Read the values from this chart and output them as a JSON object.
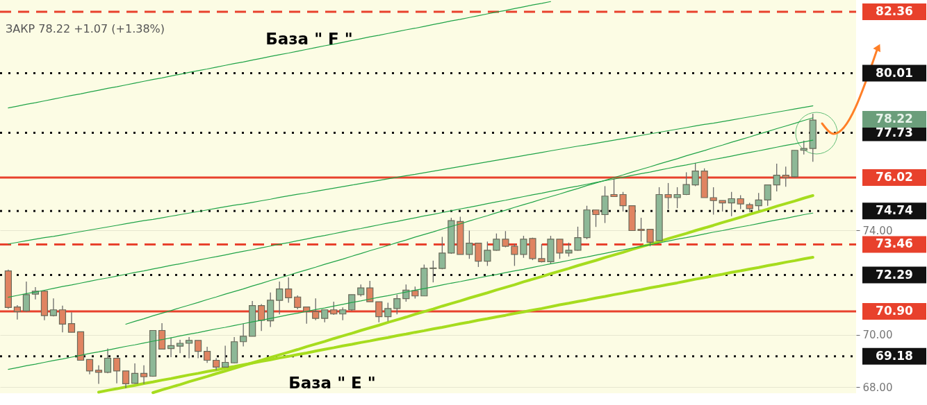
{
  "chart_data": {
    "type": "candlestick",
    "tick_labels": "y",
    "grid": "y",
    "ylim": [
      67.77,
      82.81
    ],
    "yticks": [
      {
        "value": 68,
        "label": "68.00"
      },
      {
        "value": 70,
        "label": "70.00"
      },
      {
        "value": 74,
        "label": "74.00"
      }
    ],
    "categories": [
      null,
      null,
      null,
      null,
      null,
      null,
      null,
      null,
      null,
      null,
      null,
      null,
      null,
      null,
      null,
      null,
      null,
      null,
      null,
      null,
      null,
      null,
      null,
      null,
      null,
      null,
      null,
      null,
      null,
      null,
      null,
      null,
      null,
      null,
      null,
      null,
      null,
      null,
      null,
      null,
      null,
      null,
      null,
      null,
      null,
      null,
      null,
      null,
      null,
      null,
      null,
      null,
      null,
      null,
      null,
      null,
      null,
      null,
      null,
      null,
      null,
      null,
      null,
      null,
      null,
      null,
      null,
      null,
      null,
      null,
      null,
      null,
      null,
      null,
      null,
      null,
      null,
      null,
      null,
      null,
      null,
      null,
      null,
      null,
      null,
      null,
      null,
      null,
      null,
      null
    ],
    "ohlc": [
      [
        72.45,
        72.5,
        71.0,
        71.05
      ],
      [
        71.07,
        71.14,
        70.59,
        70.89
      ],
      [
        70.92,
        72.04,
        70.88,
        71.54
      ],
      [
        71.56,
        71.83,
        71.36,
        71.67
      ],
      [
        71.67,
        71.71,
        70.56,
        70.74
      ],
      [
        70.74,
        71.4,
        70.71,
        70.96
      ],
      [
        70.96,
        71.12,
        70.1,
        70.41
      ],
      [
        70.43,
        70.87,
        70.1,
        70.1
      ],
      [
        70.12,
        70.12,
        69.02,
        69.03
      ],
      [
        69.06,
        69.06,
        68.49,
        68.62
      ],
      [
        68.65,
        68.84,
        68.13,
        68.57
      ],
      [
        68.57,
        69.48,
        68.53,
        69.11
      ],
      [
        69.11,
        69.12,
        68.15,
        68.62
      ],
      [
        68.62,
        68.62,
        67.96,
        68.13
      ],
      [
        68.15,
        68.91,
        68.13,
        68.53
      ],
      [
        68.53,
        68.84,
        68.13,
        68.4
      ],
      [
        68.42,
        70.18,
        68.4,
        70.17
      ],
      [
        70.17,
        70.45,
        69.46,
        69.46
      ],
      [
        69.48,
        69.9,
        69.15,
        69.59
      ],
      [
        69.57,
        69.81,
        69.3,
        69.68
      ],
      [
        69.68,
        69.92,
        69.11,
        69.79
      ],
      [
        69.79,
        69.79,
        69.11,
        69.37
      ],
      [
        69.37,
        69.55,
        68.93,
        69.03
      ],
      [
        69.03,
        69.11,
        68.66,
        68.77
      ],
      [
        68.77,
        69.59,
        68.75,
        68.95
      ],
      [
        68.93,
        69.92,
        68.91,
        69.74
      ],
      [
        69.74,
        70.43,
        69.56,
        69.95
      ],
      [
        69.95,
        71.3,
        69.95,
        71.12
      ],
      [
        71.12,
        71.18,
        70.15,
        70.56
      ],
      [
        70.54,
        71.62,
        70.3,
        71.33
      ],
      [
        71.32,
        72.04,
        70.79,
        71.76
      ],
      [
        71.76,
        72.2,
        71.23,
        71.42
      ],
      [
        71.45,
        71.51,
        70.98,
        71.05
      ],
      [
        71.07,
        71.07,
        70.43,
        70.89
      ],
      [
        70.89,
        71.4,
        70.56,
        70.63
      ],
      [
        70.63,
        70.96,
        70.48,
        70.96
      ],
      [
        70.96,
        71.27,
        70.77,
        70.8
      ],
      [
        70.8,
        71.05,
        70.56,
        70.96
      ],
      [
        70.96,
        71.54,
        70.92,
        71.54
      ],
      [
        71.54,
        71.93,
        71.47,
        71.8
      ],
      [
        71.8,
        72.07,
        71.27,
        71.27
      ],
      [
        71.27,
        71.27,
        70.48,
        70.7
      ],
      [
        70.7,
        71.23,
        70.52,
        71.01
      ],
      [
        71.01,
        71.54,
        70.79,
        71.39
      ],
      [
        71.39,
        71.93,
        71.27,
        71.71
      ],
      [
        71.69,
        71.85,
        71.39,
        71.49
      ],
      [
        71.49,
        72.69,
        71.49,
        72.55
      ],
      [
        72.54,
        72.84,
        72.01,
        72.56
      ],
      [
        72.54,
        73.75,
        72.51,
        73.13
      ],
      [
        73.13,
        74.48,
        73.1,
        74.37
      ],
      [
        74.34,
        74.52,
        73.08,
        73.08
      ],
      [
        73.08,
        73.99,
        72.91,
        73.51
      ],
      [
        73.51,
        73.51,
        72.6,
        72.82
      ],
      [
        72.82,
        73.57,
        72.64,
        73.24
      ],
      [
        73.24,
        73.88,
        73.22,
        73.66
      ],
      [
        73.66,
        73.97,
        73.35,
        73.39
      ],
      [
        73.39,
        73.48,
        72.64,
        73.08
      ],
      [
        73.08,
        73.79,
        72.95,
        73.66
      ],
      [
        73.69,
        73.72,
        72.86,
        72.92
      ],
      [
        72.92,
        73.48,
        72.77,
        72.8
      ],
      [
        72.8,
        73.79,
        72.73,
        73.66
      ],
      [
        73.66,
        73.66,
        72.91,
        73.13
      ],
      [
        73.13,
        73.53,
        73.0,
        73.24
      ],
      [
        73.24,
        74.14,
        73.22,
        73.72
      ],
      [
        73.72,
        74.94,
        73.66,
        74.78
      ],
      [
        74.78,
        74.78,
        74.13,
        74.6
      ],
      [
        74.6,
        75.69,
        74.28,
        75.31
      ],
      [
        75.37,
        75.98,
        75.29,
        75.29
      ],
      [
        75.37,
        75.47,
        74.72,
        74.94
      ],
      [
        74.94,
        74.94,
        73.99,
        73.99
      ],
      [
        74.04,
        74.48,
        73.57,
        73.99
      ],
      [
        74.04,
        74.04,
        73.39,
        73.54
      ],
      [
        73.61,
        75.65,
        73.6,
        75.37
      ],
      [
        75.37,
        75.81,
        74.81,
        75.25
      ],
      [
        75.25,
        75.65,
        74.85,
        75.37
      ],
      [
        75.37,
        76.22,
        75.35,
        75.75
      ],
      [
        75.74,
        76.58,
        75.69,
        76.27
      ],
      [
        76.27,
        76.37,
        75.25,
        75.25
      ],
      [
        75.25,
        75.65,
        74.6,
        75.14
      ],
      [
        75.14,
        75.14,
        74.72,
        75.05
      ],
      [
        75.05,
        75.47,
        74.54,
        75.21
      ],
      [
        75.21,
        75.34,
        74.81,
        75.01
      ],
      [
        74.98,
        75.05,
        74.69,
        74.83
      ],
      [
        74.94,
        75.43,
        74.76,
        75.16
      ],
      [
        75.16,
        75.74,
        74.94,
        75.74
      ],
      [
        75.74,
        76.55,
        75.49,
        76.11
      ],
      [
        76.11,
        76.44,
        75.67,
        76.02
      ],
      [
        76.05,
        77.06,
        76.02,
        77.06
      ],
      [
        77.06,
        77.43,
        76.9,
        77.13
      ],
      [
        77.13,
        78.46,
        76.62,
        78.22
      ]
    ],
    "colors": [
      "#e08461",
      "#e08461",
      "#8db897",
      "#8db897",
      "#e08461",
      "#8db897",
      "#e08461",
      "#e08461",
      "#e08461",
      "#e08461",
      "#e08461",
      "#8db897",
      "#e08461",
      "#e08461",
      "#8db897",
      "#e08461",
      "#8db897",
      "#e08461",
      "#8db897",
      "#8db897",
      "#8db897",
      "#e08461",
      "#e08461",
      "#e08461",
      "#8db897",
      "#8db897",
      "#8db897",
      "#8db897",
      "#e08461",
      "#8db897",
      "#8db897",
      "#e08461",
      "#e08461",
      "#e08461",
      "#e08461",
      "#8db897",
      "#e08461",
      "#8db897",
      "#8db897",
      "#8db897",
      "#e08461",
      "#e08461",
      "#8db897",
      "#8db897",
      "#8db897",
      "#e08461",
      "#8db897",
      "#8db897",
      "#8db897",
      "#8db897",
      "#e08461",
      "#8db897",
      "#e08461",
      "#8db897",
      "#8db897",
      "#e08461",
      "#e08461",
      "#8db897",
      "#e08461",
      "#e08461",
      "#8db897",
      "#e08461",
      "#8db897",
      "#8db897",
      "#8db897",
      "#e08461",
      "#8db897",
      "#e08461",
      "#e08461",
      "#e08461",
      "#e08461",
      "#e08461",
      "#8db897",
      "#e08461",
      "#8db897",
      "#8db897",
      "#8db897",
      "#e08461",
      "#e08461",
      "#e08461",
      "#8db897",
      "#e08461",
      "#e08461",
      "#8db897",
      "#8db897",
      "#8db897",
      "#e08461",
      "#8db897",
      "#8db897",
      "#8db897"
    ],
    "series": [
      {
        "type": "line",
        "color": "#1fa347",
        "values": [
          78.68,
          78.75,
          78.82,
          78.88,
          78.95,
          79.02,
          79.09,
          79.16,
          79.22,
          79.29,
          79.36,
          79.43,
          79.49,
          79.56,
          79.63,
          79.7,
          79.77,
          79.83,
          79.9,
          79.97,
          80.04,
          80.11,
          80.17,
          80.24,
          80.31,
          80.38,
          80.44,
          80.51,
          80.58,
          80.65,
          80.72,
          80.78,
          80.85,
          80.92,
          80.99,
          81.06,
          81.12,
          81.19,
          81.26,
          81.33,
          81.4,
          81.46,
          81.53,
          81.6,
          81.67,
          81.73,
          81.8,
          81.87,
          81.94,
          82.01,
          82.07,
          82.14,
          82.21,
          82.28,
          82.35,
          82.41,
          82.48,
          82.55,
          82.62,
          82.68,
          82.75,
          null,
          null,
          null,
          null,
          null,
          null,
          null,
          null,
          null,
          null,
          null,
          null,
          null,
          null,
          null,
          null,
          null,
          null,
          null,
          null,
          null,
          null,
          null,
          null,
          null,
          null,
          null,
          null,
          null
        ]
      },
      {
        "type": "line",
        "color": "#1fa347",
        "values": [
          73.48,
          73.54,
          73.6,
          73.66,
          73.72,
          73.77,
          73.83,
          73.89,
          73.95,
          74.01,
          74.07,
          74.13,
          74.19,
          74.25,
          74.31,
          74.37,
          74.42,
          74.48,
          74.54,
          74.6,
          74.66,
          74.72,
          74.78,
          74.84,
          74.9,
          74.96,
          75.01,
          75.07,
          75.13,
          75.19,
          75.26,
          75.32,
          75.38,
          75.43,
          75.49,
          75.55,
          75.61,
          75.67,
          75.73,
          75.79,
          75.85,
          75.91,
          75.97,
          76.03,
          76.09,
          76.14,
          76.2,
          76.26,
          76.32,
          76.38,
          76.44,
          76.5,
          76.56,
          76.62,
          76.68,
          76.74,
          76.8,
          76.86,
          76.92,
          76.98,
          77.04,
          77.1,
          77.16,
          77.22,
          77.27,
          77.33,
          77.39,
          77.45,
          77.51,
          77.57,
          77.63,
          77.69,
          77.75,
          77.81,
          77.87,
          77.93,
          77.99,
          78.05,
          78.1,
          78.16,
          78.22,
          78.28,
          78.34,
          78.4,
          78.46,
          78.52,
          78.58,
          78.64,
          78.7,
          78.76
        ]
      },
      {
        "type": "line",
        "color": "#1fa347",
        "values": [
          71.44,
          71.51,
          71.58,
          71.64,
          71.71,
          71.78,
          71.85,
          71.91,
          71.98,
          72.05,
          72.12,
          72.18,
          72.25,
          72.32,
          72.39,
          72.45,
          72.52,
          72.59,
          72.66,
          72.72,
          72.79,
          72.86,
          72.93,
          72.99,
          73.06,
          73.13,
          73.2,
          73.26,
          73.33,
          73.4,
          73.47,
          73.53,
          73.6,
          73.67,
          73.74,
          73.8,
          73.87,
          73.94,
          74.01,
          74.07,
          74.14,
          74.21,
          74.28,
          74.34,
          74.41,
          74.48,
          74.55,
          74.61,
          74.68,
          74.75,
          74.82,
          74.88,
          74.95,
          75.02,
          75.09,
          75.15,
          75.22,
          75.29,
          75.36,
          75.42,
          75.49,
          75.56,
          75.63,
          75.69,
          75.76,
          75.83,
          75.9,
          75.96,
          76.03,
          76.1,
          76.17,
          76.23,
          76.3,
          76.37,
          76.44,
          76.5,
          76.57,
          76.64,
          76.71,
          76.77,
          76.84,
          76.91,
          76.98,
          77.04,
          77.11,
          77.18,
          77.25,
          77.31,
          77.38,
          77.45
        ]
      },
      {
        "type": "line",
        "color": "#1fa347",
        "values": [
          null,
          null,
          null,
          null,
          null,
          null,
          null,
          null,
          null,
          null,
          null,
          null,
          null,
          70.41,
          70.52,
          70.62,
          70.73,
          70.83,
          70.93,
          71.04,
          71.14,
          71.24,
          71.35,
          71.45,
          71.56,
          71.66,
          71.76,
          71.87,
          71.97,
          72.08,
          72.18,
          72.28,
          72.39,
          72.49,
          72.59,
          72.7,
          72.8,
          72.9,
          73.01,
          73.11,
          73.22,
          73.32,
          73.42,
          73.53,
          73.63,
          73.74,
          73.84,
          73.94,
          74.05,
          74.15,
          74.25,
          74.36,
          74.46,
          74.56,
          74.67,
          74.77,
          74.88,
          74.98,
          75.08,
          75.19,
          75.29,
          75.39,
          75.5,
          75.6,
          75.71,
          75.81,
          75.91,
          76.02,
          76.12,
          76.23,
          76.33,
          76.43,
          76.54,
          76.64,
          76.74,
          76.85,
          76.95,
          77.05,
          77.16,
          77.26,
          77.37,
          77.47,
          77.57,
          77.68,
          77.78,
          77.89,
          77.99,
          78.09,
          78.2,
          78.3
        ]
      },
      {
        "type": "line",
        "color": "#1fa347",
        "values": [
          68.68,
          68.75,
          68.82,
          68.88,
          68.95,
          69.02,
          69.08,
          69.15,
          69.22,
          69.29,
          69.35,
          69.42,
          69.49,
          69.56,
          69.62,
          69.69,
          69.76,
          69.82,
          69.89,
          69.96,
          70.03,
          70.09,
          70.16,
          70.23,
          70.29,
          70.36,
          70.43,
          70.5,
          70.56,
          70.63,
          70.7,
          70.77,
          70.83,
          70.9,
          70.97,
          71.03,
          71.1,
          71.17,
          71.24,
          71.3,
          71.37,
          71.44,
          71.5,
          71.57,
          71.64,
          71.71,
          71.77,
          71.84,
          71.91,
          71.98,
          72.04,
          72.11,
          72.18,
          72.25,
          72.31,
          72.38,
          72.45,
          72.51,
          72.58,
          72.65,
          72.72,
          72.78,
          72.85,
          72.92,
          72.98,
          73.05,
          73.12,
          73.19,
          73.25,
          73.32,
          73.39,
          73.45,
          73.52,
          73.59,
          73.66,
          73.72,
          73.79,
          73.86,
          73.93,
          73.99,
          74.06,
          74.13,
          74.19,
          74.26,
          74.33,
          74.4,
          74.46,
          74.53,
          74.6,
          74.66
        ]
      },
      {
        "type": "line",
        "color": "#a6dc1e",
        "values": [
          null,
          null,
          null,
          null,
          null,
          null,
          null,
          null,
          null,
          null,
          null,
          null,
          null,
          null,
          null,
          null,
          67.79,
          67.9,
          68.0,
          68.1,
          68.21,
          68.31,
          68.41,
          68.52,
          68.62,
          68.72,
          68.83,
          68.93,
          69.03,
          69.14,
          69.24,
          69.34,
          69.44,
          69.55,
          69.65,
          69.75,
          69.86,
          69.96,
          70.06,
          70.17,
          70.27,
          70.37,
          70.48,
          70.58,
          70.68,
          70.79,
          70.89,
          70.99,
          71.1,
          71.2,
          71.3,
          71.41,
          71.51,
          71.61,
          71.72,
          71.82,
          71.92,
          72.03,
          72.13,
          72.23,
          72.34,
          72.44,
          72.54,
          72.65,
          72.75,
          72.85,
          72.96,
          73.06,
          73.16,
          73.27,
          73.37,
          73.47,
          73.57,
          73.68,
          73.78,
          73.88,
          73.99,
          74.09,
          74.19,
          74.3,
          74.4,
          74.5,
          74.61,
          74.71,
          74.81,
          74.92,
          75.02,
          75.12,
          75.23,
          75.33
        ]
      },
      {
        "type": "line",
        "color": "#a6dc1e",
        "values": [
          null,
          null,
          null,
          null,
          null,
          null,
          null,
          null,
          null,
          null,
          67.81,
          67.88,
          67.94,
          68.01,
          68.07,
          68.14,
          68.2,
          68.27,
          68.33,
          68.4,
          68.47,
          68.53,
          68.6,
          68.66,
          68.73,
          68.79,
          68.86,
          68.92,
          68.99,
          69.05,
          69.12,
          69.18,
          69.25,
          69.31,
          69.38,
          69.45,
          69.51,
          69.58,
          69.64,
          69.71,
          69.77,
          69.84,
          69.9,
          69.97,
          70.03,
          70.1,
          70.16,
          70.23,
          70.29,
          70.36,
          70.43,
          70.49,
          70.56,
          70.62,
          70.69,
          70.75,
          70.82,
          70.88,
          70.95,
          71.01,
          71.08,
          71.15,
          71.21,
          71.28,
          71.34,
          71.41,
          71.47,
          71.54,
          71.6,
          71.67,
          71.73,
          71.8,
          71.86,
          71.93,
          71.99,
          72.06,
          72.13,
          72.19,
          72.26,
          72.32,
          72.39,
          72.45,
          72.52,
          72.58,
          72.65,
          72.71,
          72.78,
          72.84,
          72.91,
          72.97
        ]
      }
    ],
    "ref_lines": [
      {
        "axis": "y",
        "value": 82.36,
        "label": "82.36",
        "color": "#e8412c",
        "line_style": "dashed"
      },
      {
        "axis": "y",
        "value": 80.01,
        "label": "80.01",
        "color": "#111111",
        "line_style": "dotted"
      },
      {
        "axis": "y",
        "value": 77.73,
        "label": "77.73",
        "color": "#111111",
        "line_style": "dotted"
      },
      {
        "axis": "y",
        "value": 76.02,
        "label": "76.02",
        "color": "#e8412c",
        "line_style": "solid"
      },
      {
        "axis": "y",
        "value": 74.74,
        "label": "74.74",
        "color": "#111111",
        "line_style": "dotted"
      },
      {
        "axis": "y",
        "value": 73.46,
        "label": "73.46",
        "color": "#e8412c",
        "line_style": "dashed"
      },
      {
        "axis": "y",
        "value": 72.29,
        "label": "72.29",
        "color": "#111111",
        "line_style": "dotted"
      },
      {
        "axis": "y",
        "value": 70.9,
        "label": "70.90",
        "color": "#e8412c",
        "line_style": "solid"
      },
      {
        "axis": "y",
        "value": 69.18,
        "label": "69.18",
        "color": "#111111",
        "line_style": "dotted"
      }
    ],
    "annotations": [
      "ЗАКР 78.22 +1.07 (+1.38%)",
      "База \" F \"",
      "База \" E \"",
      "78.22"
    ]
  }
}
